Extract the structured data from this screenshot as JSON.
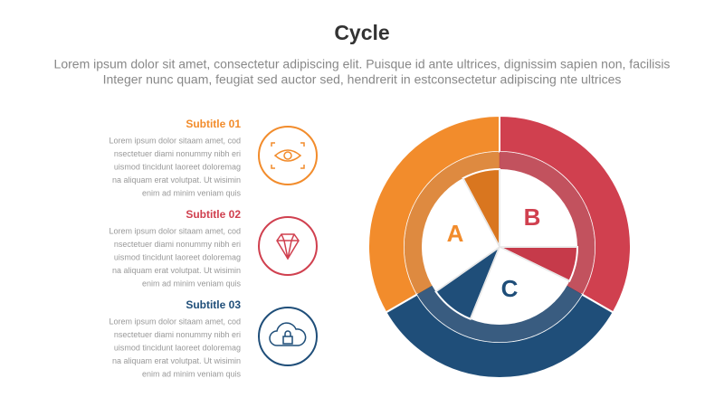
{
  "header": {
    "title": "Cycle",
    "subtitle": [
      "Lorem ipsum dolor sit amet, consectetur adipiscing elit. Puisque id ante ultrices, dignissim sapien non, facilisis",
      "Integer nunc quam, feugiat sed auctor sed, hendrerit in estconsectetur adipiscing nte ultrices"
    ]
  },
  "items": [
    {
      "subtitle": "Subtitle 01",
      "body": [
        "Lorem ipsum dolor sitaam amet, cod",
        "nsectetuer diami nonummy nibh eri",
        "uismod tincidunt laoreet doloremag",
        "na aliquam erat volutpat. Ut wisimin",
        "enim ad minim veniam quis"
      ]
    },
    {
      "subtitle": "Subtitle 02",
      "body": [
        "Lorem ipsum dolor sitaam amet, cod",
        "nsectetuer diami nonummy nibh eri",
        "uismod tincidunt laoreet doloremag",
        "na aliquam erat volutpat. Ut wisimin",
        "enim ad minim veniam quis"
      ]
    },
    {
      "subtitle": "Subtitle 03",
      "body": [
        "Lorem ipsum dolor sitaam amet, cod",
        "nsectetuer diami nonummy nibh eri",
        "uismod tincidunt laoreet doloremag",
        "na aliquam erat volutpat. Ut wisimin",
        "enim ad minim veniam quis"
      ]
    }
  ],
  "segments": [
    "A",
    "B",
    "C"
  ]
}
